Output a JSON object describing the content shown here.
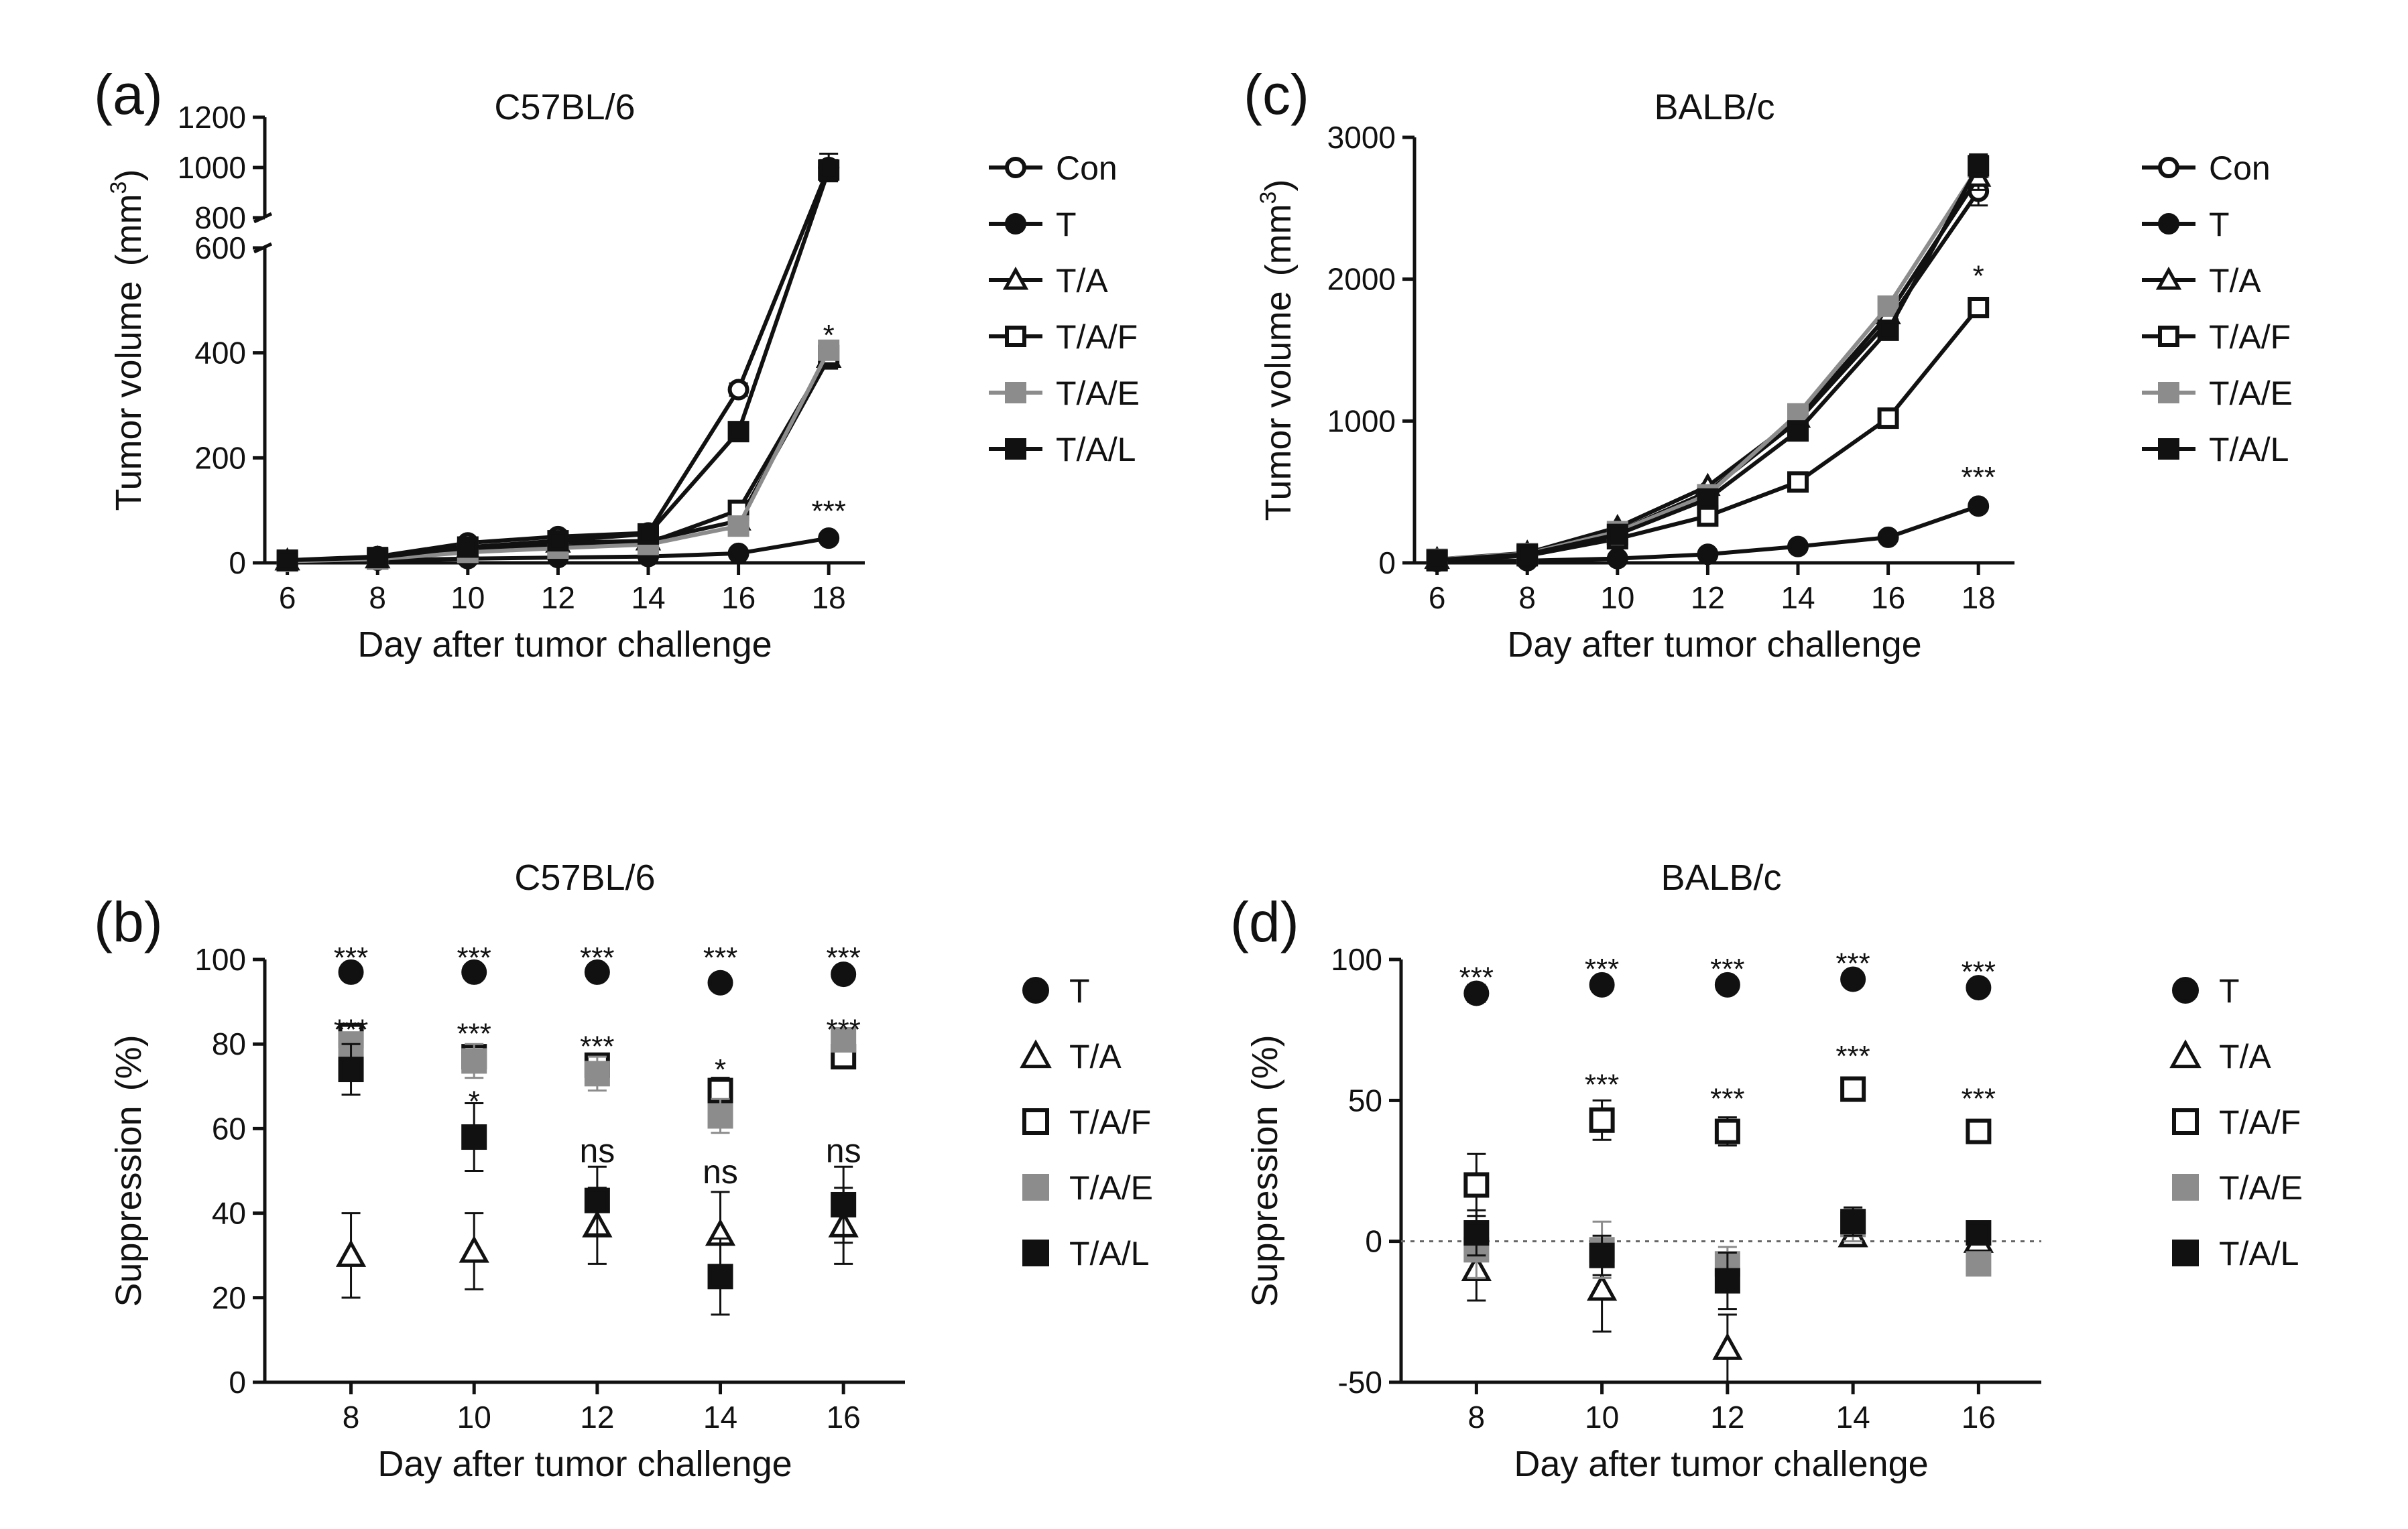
{
  "chart_data": [
    {
      "id": "a",
      "panel_label": "(a)",
      "type": "line",
      "title": "C57BL/6",
      "xlabel": "Day after tumor challenge",
      "ylabel": "Tumor volume",
      "ylabel_unit": "(mm",
      "ylabel_sup": "3",
      "ylabel_close": ")",
      "x": [
        6,
        8,
        10,
        12,
        14,
        16,
        18
      ],
      "xlim": [
        5.5,
        18.8
      ],
      "xticks": [
        "6",
        "8",
        "10",
        "12",
        "14",
        "16",
        "18"
      ],
      "ylim_lower": [
        0,
        600
      ],
      "yticks_lower": [
        "0",
        "200",
        "400",
        "600"
      ],
      "ylim_upper": [
        800,
        1200
      ],
      "yticks_upper": [
        "800",
        "1000",
        "1200"
      ],
      "broken_axis": true,
      "series": [
        {
          "name": "Con",
          "marker": "circle-open",
          "color": "#111111",
          "values": [
            5,
            12,
            38,
            50,
            57,
            330,
            1000
          ],
          "err": [
            0,
            0,
            0,
            0,
            0,
            12,
            55
          ]
        },
        {
          "name": "T",
          "marker": "circle-filled",
          "color": "#111111",
          "values": [
            3,
            5,
            8,
            10,
            12,
            18,
            47
          ],
          "err": [
            0,
            0,
            0,
            0,
            0,
            0,
            4
          ]
        },
        {
          "name": "T/A",
          "marker": "triangle-open",
          "color": "#111111",
          "values": [
            4,
            8,
            25,
            38,
            42,
            80,
            390
          ],
          "err": [
            0,
            0,
            0,
            0,
            0,
            8,
            20
          ]
        },
        {
          "name": "T/A/F",
          "marker": "square-open",
          "color": "#111111",
          "values": [
            3,
            7,
            22,
            30,
            38,
            100,
            395
          ],
          "err": [
            0,
            0,
            0,
            0,
            0,
            6,
            18
          ]
        },
        {
          "name": "T/A/E",
          "marker": "square-filled",
          "color": "#8c8c8c",
          "values": [
            3,
            7,
            20,
            28,
            35,
            70,
            405
          ],
          "err": [
            0,
            0,
            0,
            0,
            0,
            6,
            15
          ]
        },
        {
          "name": "T/A/L",
          "marker": "square-filled",
          "color": "#111111",
          "values": [
            5,
            10,
            30,
            42,
            55,
            250,
            990
          ],
          "err": [
            0,
            0,
            0,
            0,
            0,
            10,
            40
          ]
        }
      ],
      "annotations": [
        {
          "x": 18,
          "y": 430,
          "text": "*"
        },
        {
          "x": 18,
          "y": 95,
          "text": "***"
        }
      ],
      "legend": "right"
    },
    {
      "id": "b",
      "panel_label": "(b)",
      "type": "scatter",
      "title": "C57BL/6",
      "xlabel": "Day after tumor challenge",
      "ylabel": "Suppression",
      "ylabel_unit": "(%)",
      "x": [
        8,
        10,
        12,
        14,
        16
      ],
      "xlim": [
        6.6,
        17
      ],
      "xticks": [
        "8",
        "10",
        "12",
        "14",
        "16"
      ],
      "ylim": [
        0,
        100
      ],
      "yticks": [
        "0",
        "20",
        "40",
        "60",
        "80",
        "100"
      ],
      "series": [
        {
          "name": "T",
          "marker": "circle-filled",
          "color": "#111111",
          "values": [
            97,
            97,
            97,
            94.5,
            96.5
          ],
          "err": [
            0,
            0,
            0,
            0,
            0
          ]
        },
        {
          "name": "T/A",
          "marker": "triangle-open",
          "color": "#111111",
          "values": [
            30,
            31,
            37,
            35,
            37
          ],
          "err": [
            10,
            9,
            9,
            10,
            9
          ]
        },
        {
          "name": "T/A/F",
          "marker": "square-open",
          "color": "#111111",
          "values": [
            82,
            77,
            75,
            69,
            77
          ],
          "err": [
            2,
            2,
            2,
            3,
            2
          ]
        },
        {
          "name": "T/A/E",
          "marker": "square-filled",
          "color": "#8c8c8c",
          "values": [
            80,
            76,
            73,
            63,
            81
          ],
          "err": [
            2,
            4,
            4,
            4,
            2
          ]
        },
        {
          "name": "T/A/L",
          "marker": "square-filled",
          "color": "#111111",
          "values": [
            74,
            58,
            43,
            25,
            42
          ],
          "err": [
            6,
            8,
            8,
            9,
            9
          ]
        }
      ],
      "annotations": [
        {
          "x": 8,
          "y": 100,
          "text": "***"
        },
        {
          "x": 10,
          "y": 100,
          "text": "***"
        },
        {
          "x": 12,
          "y": 100,
          "text": "***"
        },
        {
          "x": 14,
          "y": 100,
          "text": "***"
        },
        {
          "x": 16,
          "y": 100,
          "text": "***"
        },
        {
          "x": 8,
          "y": 83,
          "text": "***"
        },
        {
          "x": 10,
          "y": 82,
          "text": "***"
        },
        {
          "x": 12,
          "y": 79,
          "text": "***"
        },
        {
          "x": 14,
          "y": 73.5,
          "text": "*"
        },
        {
          "x": 16,
          "y": 83,
          "text": "***"
        },
        {
          "x": 10,
          "y": 66,
          "text": "*"
        },
        {
          "x": 12,
          "y": 54,
          "text": "ns"
        },
        {
          "x": 14,
          "y": 49,
          "text": "ns"
        },
        {
          "x": 16,
          "y": 54,
          "text": "ns"
        }
      ],
      "legend": "right"
    },
    {
      "id": "c",
      "panel_label": "(c)",
      "type": "line",
      "title": "BALB/c",
      "xlabel": "Day after tumor challenge",
      "ylabel": "Tumor volume",
      "ylabel_unit": "(mm",
      "ylabel_sup": "3",
      "ylabel_close": ")",
      "x": [
        6,
        8,
        10,
        12,
        14,
        16,
        18
      ],
      "xlim": [
        5.5,
        18.8
      ],
      "xticks": [
        "6",
        "8",
        "10",
        "12",
        "14",
        "16",
        "18"
      ],
      "ylim": [
        0,
        3000
      ],
      "yticks": [
        "0",
        "1000",
        "2000",
        "3000"
      ],
      "series": [
        {
          "name": "Con",
          "marker": "circle-open",
          "color": "#111111",
          "values": [
            20,
            60,
            220,
            500,
            1000,
            1700,
            2620
          ],
          "err": [
            0,
            0,
            0,
            0,
            0,
            0,
            100
          ]
        },
        {
          "name": "T",
          "marker": "circle-filled",
          "color": "#111111",
          "values": [
            10,
            15,
            30,
            60,
            115,
            180,
            400
          ],
          "err": [
            0,
            0,
            0,
            0,
            0,
            0,
            20
          ]
        },
        {
          "name": "T/A",
          "marker": "triangle-open",
          "color": "#111111",
          "values": [
            25,
            70,
            250,
            540,
            1020,
            1750,
            2720
          ],
          "err": [
            0,
            0,
            0,
            0,
            0,
            0,
            90
          ]
        },
        {
          "name": "T/A/F",
          "marker": "square-open",
          "color": "#111111",
          "values": [
            15,
            50,
            170,
            330,
            570,
            1020,
            1800
          ],
          "err": [
            0,
            0,
            0,
            0,
            0,
            30,
            60
          ]
        },
        {
          "name": "T/A/E",
          "marker": "square-filled",
          "color": "#8c8c8c",
          "values": [
            25,
            65,
            220,
            480,
            1050,
            1810,
            2790
          ],
          "err": [
            0,
            0,
            0,
            0,
            0,
            0,
            70
          ]
        },
        {
          "name": "T/A/L",
          "marker": "square-filled",
          "color": "#111111",
          "values": [
            20,
            60,
            200,
            450,
            930,
            1640,
            2800
          ],
          "err": [
            0,
            0,
            0,
            0,
            0,
            0,
            80
          ]
        }
      ],
      "annotations": [
        {
          "x": 18,
          "y": 2010,
          "text": "*"
        },
        {
          "x": 18,
          "y": 590,
          "text": "***"
        }
      ],
      "legend": "right"
    },
    {
      "id": "d",
      "panel_label": "(d)",
      "type": "scatter",
      "title": "BALB/c",
      "xlabel": "Day after tumor challenge",
      "ylabel": "Suppression",
      "ylabel_unit": "(%)",
      "x": [
        8,
        10,
        12,
        14,
        16
      ],
      "xlim": [
        6.8,
        17
      ],
      "xticks": [
        "8",
        "10",
        "12",
        "14",
        "16"
      ],
      "ylim": [
        -50,
        100
      ],
      "yticks": [
        "-50",
        "0",
        "50",
        "100"
      ],
      "zero_line": true,
      "series": [
        {
          "name": "T",
          "marker": "circle-filled",
          "color": "#111111",
          "values": [
            88,
            91,
            91,
            93,
            90
          ],
          "err": [
            3,
            0,
            0,
            0,
            0
          ]
        },
        {
          "name": "T/A",
          "marker": "triangle-open",
          "color": "#111111",
          "values": [
            -10,
            -17,
            -38,
            2,
            0
          ],
          "err": [
            11,
            15,
            12,
            2,
            3
          ]
        },
        {
          "name": "T/A/F",
          "marker": "square-open",
          "color": "#111111",
          "values": [
            20,
            43,
            39,
            54,
            39
          ],
          "err": [
            11,
            7,
            5,
            3,
            4
          ]
        },
        {
          "name": "T/A/E",
          "marker": "square-filled",
          "color": "#8c8c8c",
          "values": [
            -3,
            -3,
            -8,
            6,
            -8
          ],
          "err": [
            10,
            10,
            6,
            6,
            3
          ]
        },
        {
          "name": "T/A/L",
          "marker": "square-filled",
          "color": "#111111",
          "values": [
            3,
            -5,
            -14,
            7,
            3
          ],
          "err": [
            8,
            7,
            10,
            5,
            3
          ]
        }
      ],
      "annotations": [
        {
          "x": 8,
          "y": 93,
          "text": "***"
        },
        {
          "x": 10,
          "y": 96,
          "text": "***"
        },
        {
          "x": 12,
          "y": 96,
          "text": "***"
        },
        {
          "x": 14,
          "y": 98,
          "text": "***"
        },
        {
          "x": 16,
          "y": 95,
          "text": "***"
        },
        {
          "x": 10,
          "y": 55,
          "text": "***"
        },
        {
          "x": 12,
          "y": 50,
          "text": "***"
        },
        {
          "x": 14,
          "y": 65,
          "text": "***"
        },
        {
          "x": 16,
          "y": 50,
          "text": "***"
        }
      ],
      "legend": "right"
    }
  ]
}
